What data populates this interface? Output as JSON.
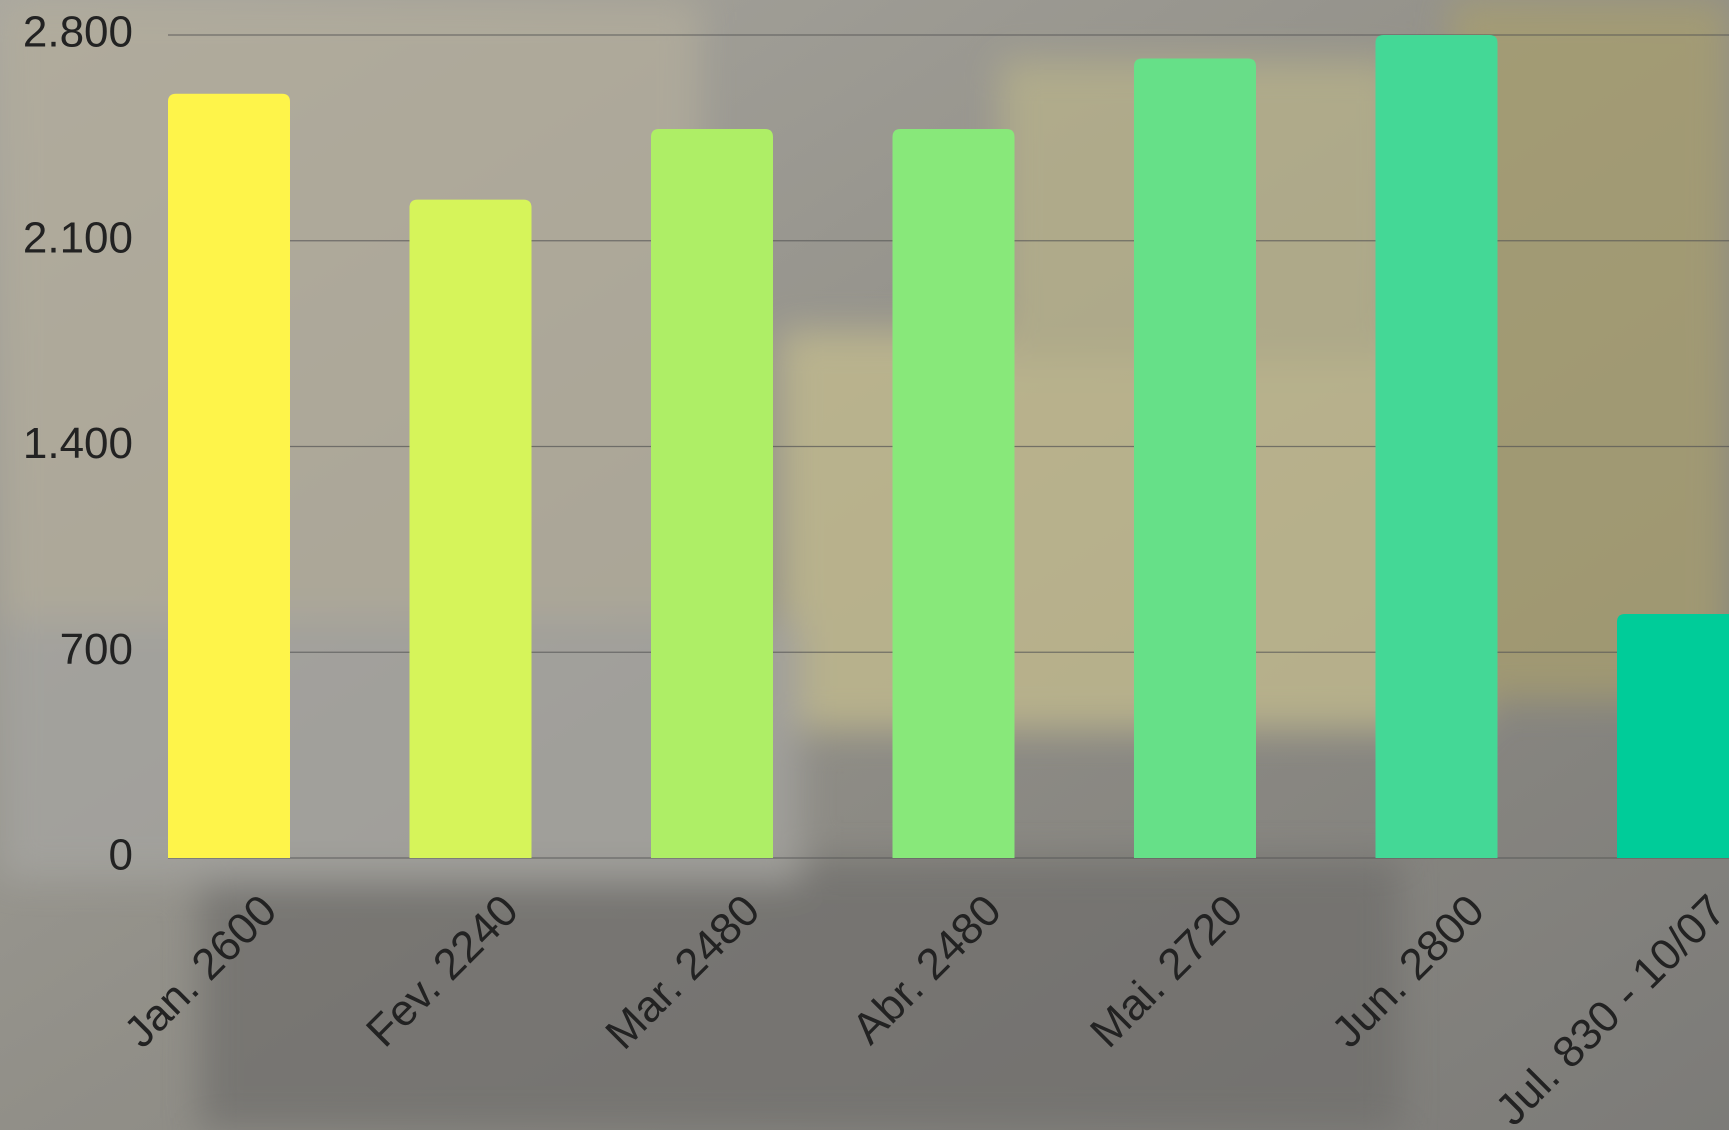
{
  "chart_data": {
    "type": "bar",
    "categories": [
      "Jan. 2600",
      "Fev. 2240",
      "Mar. 2480",
      "Abr. 2480",
      "Mai. 2720",
      "Jun. 2800",
      "Jul. 830 - 10/07"
    ],
    "values": [
      2600,
      2240,
      2480,
      2480,
      2720,
      2800,
      830
    ],
    "colors": [
      "#fef44a",
      "#d6f45a",
      "#aeee66",
      "#88e87a",
      "#66e088",
      "#44d896",
      "#00cc99"
    ],
    "ylim": [
      0,
      2800
    ],
    "yticks": [
      0,
      700,
      {
        "value": 1400,
        "label": "1.400"
      },
      {
        "value": 2100,
        "label": "2.100"
      },
      {
        "value": 2800,
        "label": "2.800"
      }
    ],
    "grid": true
  }
}
